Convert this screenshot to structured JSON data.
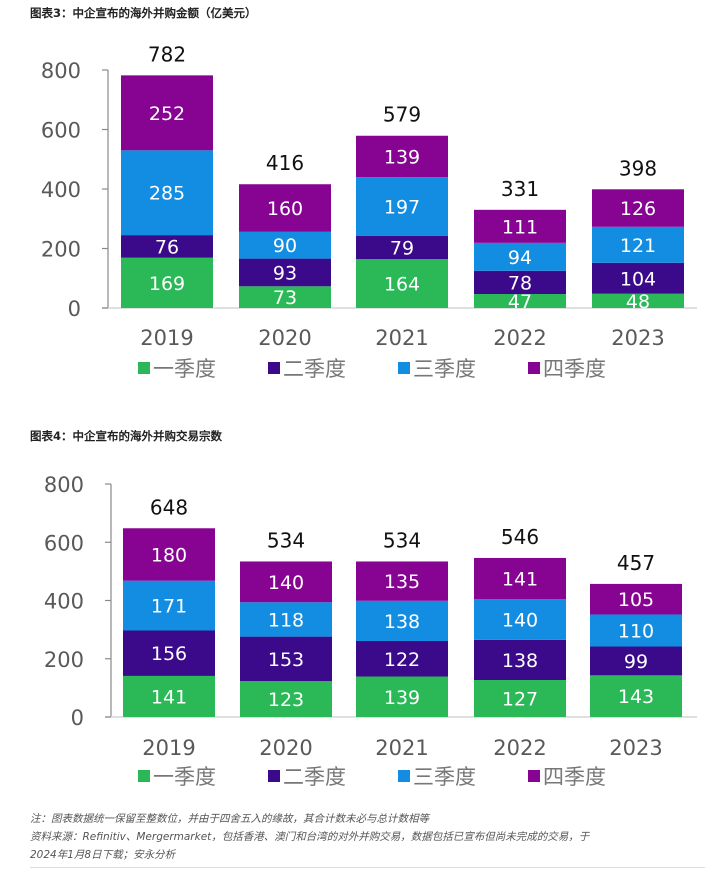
{
  "chart_data": [
    {
      "type": "bar",
      "stacked": true,
      "title": "图表3：中企宣布的海外并购金额（亿美元）",
      "xlabel": "",
      "ylabel": "",
      "ylim": [
        0,
        800
      ],
      "yticks": [
        0,
        200,
        400,
        600,
        800
      ],
      "grid": false,
      "legend": "bottom",
      "categories": [
        "2019",
        "2020",
        "2021",
        "2022",
        "2023"
      ],
      "series": [
        {
          "name": "一季度",
          "color": "#2bb957",
          "values": [
            169,
            73,
            164,
            47,
            48
          ]
        },
        {
          "name": "二季度",
          "color": "#3a0a8a",
          "values": [
            76,
            93,
            79,
            78,
            104
          ]
        },
        {
          "name": "三季度",
          "color": "#138de2",
          "values": [
            285,
            90,
            197,
            94,
            121
          ]
        },
        {
          "name": "四季度",
          "color": "#870391",
          "values": [
            252,
            160,
            139,
            111,
            126
          ]
        }
      ],
      "totals": [
        782,
        416,
        579,
        331,
        398
      ]
    },
    {
      "type": "bar",
      "stacked": true,
      "title": "图表4：中企宣布的海外并购交易宗数",
      "xlabel": "",
      "ylabel": "",
      "ylim": [
        0,
        800
      ],
      "yticks": [
        0,
        200,
        400,
        600,
        800
      ],
      "grid": false,
      "legend": "bottom",
      "categories": [
        "2019",
        "2020",
        "2021",
        "2022",
        "2023"
      ],
      "series": [
        {
          "name": "一季度",
          "color": "#2bb957",
          "values": [
            141,
            123,
            139,
            127,
            143
          ]
        },
        {
          "name": "二季度",
          "color": "#3a0a8a",
          "values": [
            156,
            153,
            122,
            138,
            99
          ]
        },
        {
          "name": "三季度",
          "color": "#138de2",
          "values": [
            171,
            118,
            138,
            140,
            110
          ]
        },
        {
          "name": "四季度",
          "color": "#870391",
          "values": [
            180,
            140,
            135,
            141,
            105
          ]
        }
      ],
      "totals": [
        648,
        534,
        534,
        546,
        457
      ]
    }
  ],
  "notes": {
    "note": "注：图表数据统一保留至整数位，并由于四舍五入的缘故，其合计数未必与总计数相等",
    "source_line1": "资料来源：Refinitiv、Mergermarket，包括香港、澳门和台湾的对外并购交易，数据包括已宣布但尚未完成的交易，于",
    "source_line2": "2024年1月8日下载；安永分析"
  }
}
